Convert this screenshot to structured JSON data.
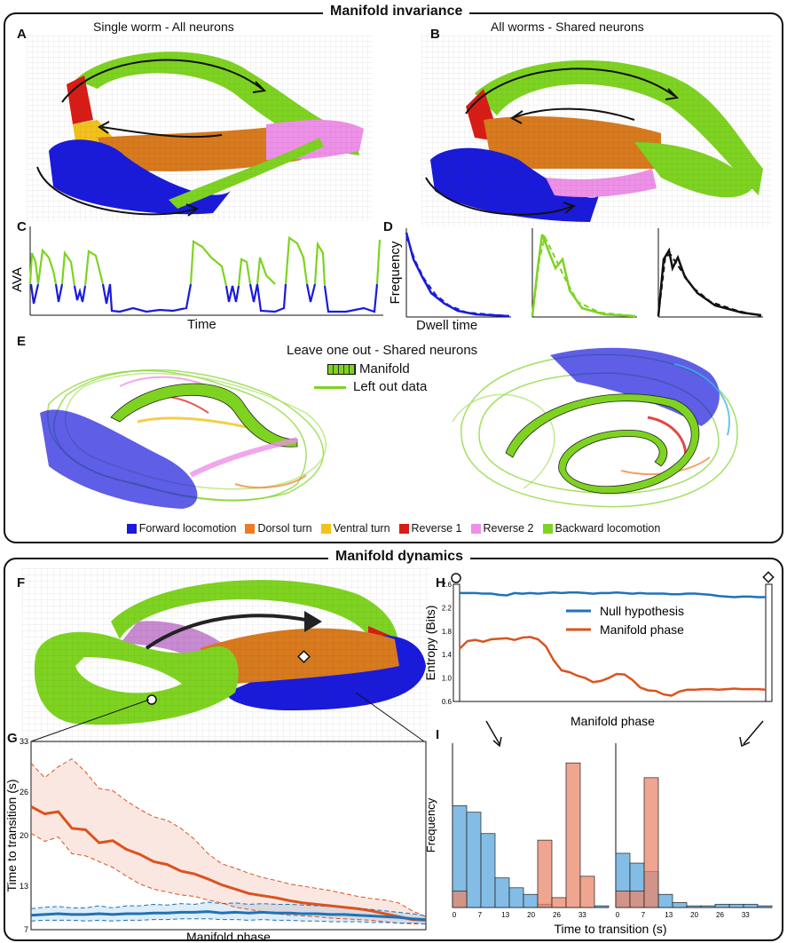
{
  "top_section": {
    "title": "Manifold invariance",
    "panel_A": {
      "label": "A",
      "subtitle": "Single worm - All neurons"
    },
    "panel_B": {
      "label": "B",
      "subtitle": "All worms - Shared neurons"
    },
    "panel_C": {
      "label": "C",
      "ylabel": "AVA",
      "xlabel": "Time"
    },
    "panel_D": {
      "label": "D",
      "ylabel": "Frequency",
      "xlabel": "Dwell time"
    },
    "panel_E": {
      "label": "E",
      "title": "Leave one out - Shared neurons",
      "legend_manifold": "Manifold",
      "legend_leftout": "Left out data"
    }
  },
  "states_legend": [
    {
      "name": "Forward locomotion",
      "color": "#1a1adb"
    },
    {
      "name": "Dorsol turn",
      "color": "#f07a24"
    },
    {
      "name": "Ventral turn",
      "color": "#f2c21a"
    },
    {
      "name": "Reverse 1",
      "color": "#d91c16"
    },
    {
      "name": "Reverse 2",
      "color": "#ee90e8"
    },
    {
      "name": "Backward locomotion",
      "color": "#7ed321"
    }
  ],
  "bottom_section": {
    "title": "Manifold dynamics",
    "panel_F": {
      "label": "F"
    },
    "panel_G": {
      "label": "G",
      "ylabel": "Time to transition (s)",
      "xlabel": "Manifold phase",
      "yticks": [
        "33",
        "26",
        "20",
        "13",
        "7"
      ]
    },
    "panel_H": {
      "label": "H",
      "ylabel": "Entropy (Bits)",
      "xlabel": "Manifold phase",
      "yticks": [
        "2.6",
        "2.2",
        "1.8",
        "1.4",
        "1.0",
        "0.6"
      ],
      "legend_null": "Null hypothesis",
      "legend_phase": "Manifold phase"
    },
    "panel_I": {
      "label": "I",
      "ylabel": "Frequency",
      "xlabel": "Time to transition (s)",
      "xticks_left": [
        "0",
        "7",
        "13",
        "20",
        "26",
        "33"
      ],
      "xticks_right": [
        "0",
        "7",
        "13",
        "20",
        "26",
        "33"
      ]
    }
  },
  "colors": {
    "null": "#1f72b8",
    "phase": "#d9541e",
    "null_fill": "#5aa7dc",
    "phase_fill": "#e9876a"
  },
  "chart_data": [
    {
      "type": "line",
      "panel": "G",
      "title": "",
      "xlabel": "Manifold phase",
      "ylabel": "Time to transition (s)",
      "ylim": [
        7,
        33
      ],
      "x": [
        0,
        1,
        2,
        3,
        4,
        5,
        6,
        7,
        8,
        9,
        10,
        11,
        12,
        13,
        14,
        15,
        16,
        17,
        18,
        19,
        20,
        21,
        22,
        23,
        24,
        25,
        26,
        27,
        28,
        29
      ],
      "series": [
        {
          "name": "Manifold phase",
          "values": [
            24,
            23,
            23.3,
            21,
            20.8,
            19,
            19.3,
            18.1,
            17.4,
            16.4,
            16,
            15.1,
            14.7,
            14,
            13.2,
            12.6,
            12,
            11.7,
            11.4,
            11,
            10.7,
            10.5,
            10.3,
            10.1,
            9.9,
            9.6,
            9.2,
            8.8,
            8.4,
            8.3
          ]
        },
        {
          "name": "Manifold phase upper",
          "values": [
            30,
            28,
            29.5,
            30.6,
            28.8,
            26.5,
            26.2,
            24.8,
            23.6,
            22.6,
            22.1,
            21,
            19.5,
            17.5,
            16.1,
            15.5,
            14.8,
            14.2,
            13.8,
            13.3,
            13,
            12.7,
            12.4,
            12,
            11.6,
            11.3,
            11.1,
            10.7,
            9.6,
            8.8
          ]
        },
        {
          "name": "Manifold phase lower",
          "values": [
            20.3,
            19.2,
            19.8,
            17.5,
            17.2,
            16.4,
            15.6,
            14.4,
            13.3,
            12.6,
            12.2,
            11.8,
            11.6,
            11.1,
            10.7,
            10.1,
            9.8,
            9.5,
            9.2,
            9.0,
            8.9,
            8.8,
            8.6,
            8.5,
            8.4,
            8.3,
            8.1,
            7.9,
            7.8,
            7.8
          ]
        },
        {
          "name": "Null hypothesis",
          "values": [
            9,
            9.1,
            9.2,
            9.1,
            9.1,
            9.2,
            9.1,
            9.2,
            9.2,
            9.3,
            9.3,
            9.4,
            9.4,
            9.5,
            9.3,
            9.4,
            9.3,
            9.4,
            9.3,
            9.3,
            9.2,
            9.2,
            9.1,
            9.1,
            9.0,
            8.9,
            8.8,
            8.7,
            8.5,
            8.4
          ]
        },
        {
          "name": "Null hypothesis upper",
          "values": [
            9.9,
            10.1,
            10.2,
            10.0,
            10.0,
            10.3,
            10.0,
            10.3,
            10.3,
            10.5,
            10.4,
            10.6,
            10.5,
            10.8,
            10.6,
            10.7,
            10.5,
            10.6,
            10.5,
            10.5,
            10.4,
            10.3,
            10.2,
            10.1,
            10.0,
            9.8,
            9.6,
            9.4,
            9.2,
            8.9
          ]
        },
        {
          "name": "Null hypothesis lower",
          "values": [
            8.2,
            8.3,
            8.3,
            8.3,
            8.2,
            8.3,
            8.2,
            8.3,
            8.3,
            8.4,
            8.4,
            8.5,
            8.5,
            8.5,
            8.4,
            8.4,
            8.3,
            8.4,
            8.3,
            8.3,
            8.2,
            8.2,
            8.1,
            8.1,
            8.1,
            8.0,
            8.0,
            7.9,
            7.9,
            7.8
          ]
        }
      ]
    },
    {
      "type": "line",
      "panel": "H",
      "xlabel": "Manifold phase",
      "ylabel": "Entropy (Bits)",
      "ylim": [
        0.6,
        2.6
      ],
      "x": [
        0,
        1,
        2,
        3,
        4,
        5,
        6,
        7,
        8,
        9,
        10,
        11,
        12,
        13,
        14,
        15,
        16,
        17,
        18,
        19,
        20,
        21,
        22,
        23,
        24,
        25,
        26,
        27,
        28,
        29,
        30,
        31,
        32,
        33,
        34,
        35,
        36,
        37,
        38,
        39
      ],
      "series": [
        {
          "name": "Null hypothesis",
          "values": [
            2.45,
            2.45,
            2.45,
            2.44,
            2.44,
            2.42,
            2.41,
            2.45,
            2.44,
            2.45,
            2.44,
            2.45,
            2.46,
            2.45,
            2.46,
            2.46,
            2.45,
            2.44,
            2.45,
            2.45,
            2.46,
            2.45,
            2.44,
            2.45,
            2.44,
            2.44,
            2.44,
            2.43,
            2.43,
            2.44,
            2.44,
            2.43,
            2.42,
            2.4,
            2.39,
            2.38,
            2.39,
            2.39,
            2.38,
            2.38
          ]
        },
        {
          "name": "Manifold phase",
          "values": [
            1.5,
            1.63,
            1.65,
            1.62,
            1.66,
            1.67,
            1.68,
            1.65,
            1.69,
            1.7,
            1.66,
            1.54,
            1.3,
            1.13,
            1.1,
            1.04,
            1.0,
            0.93,
            0.95,
            1.0,
            1.07,
            1.06,
            0.97,
            0.84,
            0.79,
            0.78,
            0.72,
            0.7,
            0.77,
            0.8,
            0.8,
            0.81,
            0.81,
            0.8,
            0.81,
            0.82,
            0.81,
            0.81,
            0.81,
            0.8
          ]
        }
      ]
    },
    {
      "type": "bar",
      "panel": "I-left",
      "xlabel": "Time to transition (s)",
      "ylabel": "Frequency",
      "categories": [
        "0",
        "3.3",
        "6.6",
        "9.9",
        "13.2",
        "16.5",
        "19.8",
        "23.1",
        "26.4",
        "29.7",
        "33"
      ],
      "series": [
        {
          "name": "Null hypothesis",
          "values": [
            0.62,
            0.58,
            0.45,
            0.18,
            0.12,
            0.08,
            0.02,
            0.0,
            0.0,
            0.0,
            0.01
          ]
        },
        {
          "name": "Manifold phase",
          "values": [
            0.1,
            0.0,
            0.0,
            0.0,
            0.0,
            0.0,
            0.41,
            0.06,
            0.88,
            0.19,
            0.0
          ]
        }
      ]
    },
    {
      "type": "bar",
      "panel": "I-right",
      "xlabel": "Time to transition (s)",
      "ylabel": "Frequency",
      "categories": [
        "0",
        "3.3",
        "6.6",
        "9.9",
        "13.2",
        "16.5",
        "19.8",
        "23.1",
        "26.4",
        "29.7",
        "33"
      ],
      "series": [
        {
          "name": "Null hypothesis",
          "values": [
            0.33,
            0.27,
            0.22,
            0.08,
            0.03,
            0.01,
            0.01,
            0.02,
            0.02,
            0.02,
            0.01
          ]
        },
        {
          "name": "Manifold phase",
          "values": [
            0.1,
            0.1,
            0.79,
            0.0,
            0.0,
            0.0,
            0.0,
            0.0,
            0.0,
            0.0,
            0.0
          ]
        }
      ]
    }
  ]
}
